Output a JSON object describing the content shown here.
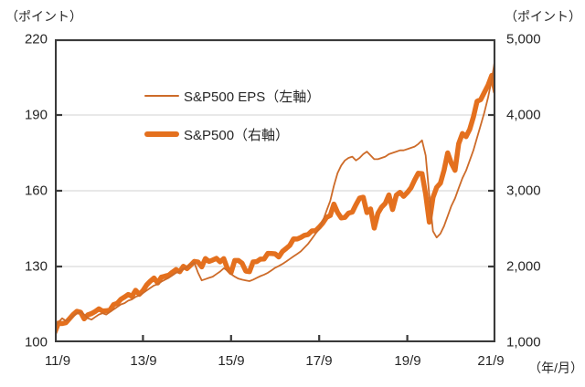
{
  "labels": {
    "left_unit": "（ポイント）",
    "right_unit": "（ポイント）",
    "x_unit": "（年/月）"
  },
  "legend": {
    "eps_label": "S&P500 EPS（左軸）",
    "price_label": "S&P500（右軸）"
  },
  "colors": {
    "eps_line": "#cd6b29",
    "price_line": "#e4701e",
    "axis": "#3a3a3a",
    "gridline": "#d9d9d9",
    "text": "#262626"
  },
  "chart_data": {
    "type": "line",
    "title": "",
    "frequency": "monthly",
    "x_start": "2011/9",
    "x_end": "2021/9",
    "x_tick_labels": [
      "11/9",
      "13/9",
      "15/9",
      "17/9",
      "19/9",
      "21/9"
    ],
    "x_tick_month_indices": [
      0,
      24,
      48,
      72,
      96,
      120
    ],
    "grid": "horizontal-only",
    "legend_position": "inside-top-left",
    "left_axis": {
      "unit": "（ポイント）",
      "min": 100,
      "max": 220,
      "tick_labels": [
        "220",
        "190",
        "160",
        "130",
        "100"
      ],
      "tick_values": [
        220,
        190,
        160,
        130,
        100
      ]
    },
    "right_axis": {
      "unit": "（ポイント）",
      "min": 1000,
      "max": 5000,
      "tick_labels": [
        "5,000",
        "4,000",
        "3,000",
        "2,000",
        "1,000"
      ],
      "tick_values": [
        5000,
        4000,
        3000,
        2000,
        1000
      ]
    },
    "series": [
      {
        "name": "S&P500 EPS（左軸）",
        "axis": "left",
        "color": "#cd6b29",
        "stroke_width": 1.8,
        "values": [
          106.0,
          108.0,
          109.5,
          108.5,
          109.0,
          110.5,
          111.5,
          112.0,
          111.0,
          109.5,
          109.0,
          110.0,
          111.0,
          111.5,
          111.0,
          112.0,
          113.0,
          114.0,
          115.0,
          115.5,
          116.5,
          117.0,
          118.0,
          118.5,
          119.5,
          120.5,
          121.5,
          122.5,
          123.0,
          124.0,
          124.8,
          125.5,
          126.5,
          127.5,
          128.0,
          129.0,
          129.8,
          130.8,
          131.5,
          127.5,
          124.5,
          125.0,
          125.5,
          126.0,
          127.0,
          128.0,
          129.3,
          128.5,
          127.0,
          126.0,
          125.2,
          124.8,
          124.5,
          124.2,
          124.8,
          125.5,
          126.2,
          126.8,
          127.5,
          128.5,
          129.5,
          130.2,
          131.0,
          132.0,
          133.0,
          134.0,
          135.0,
          136.0,
          137.5,
          139.0,
          141.0,
          143.0,
          145.0,
          148.0,
          152.0,
          156.0,
          162.0,
          167.0,
          170.0,
          172.0,
          173.0,
          173.5,
          172.0,
          173.0,
          174.5,
          175.5,
          174.0,
          172.5,
          172.5,
          173.0,
          173.5,
          174.5,
          175.0,
          175.5,
          176.0,
          176.0,
          176.5,
          177.0,
          177.5,
          178.5,
          180.0,
          174.0,
          158.0,
          144.0,
          141.5,
          143.0,
          146.0,
          150.0,
          154.0,
          157.0,
          161.0,
          165.0,
          168.0,
          172.0,
          176.0,
          181.0,
          186.0,
          191.0,
          197.0,
          204.0,
          213.0
        ]
      },
      {
        "name": "S&P500（右軸）",
        "axis": "right",
        "color": "#e4701e",
        "stroke_width": 5.5,
        "values": [
          1131,
          1253,
          1247,
          1258,
          1312,
          1366,
          1408,
          1398,
          1310,
          1362,
          1379,
          1407,
          1441,
          1412,
          1416,
          1426,
          1498,
          1515,
          1569,
          1598,
          1631,
          1606,
          1686,
          1633,
          1682,
          1757,
          1806,
          1848,
          1783,
          1859,
          1872,
          1884,
          1924,
          1960,
          1931,
          2003,
          1972,
          2018,
          2068,
          2059,
          1995,
          2105,
          2068,
          2086,
          2107,
          2063,
          2104,
          1972,
          1920,
          2079,
          2080,
          2044,
          1940,
          1932,
          2060,
          2065,
          2097,
          2099,
          2174,
          2171,
          2168,
          2126,
          2199,
          2239,
          2279,
          2364,
          2363,
          2384,
          2412,
          2423,
          2470,
          2472,
          2519,
          2575,
          2648,
          2674,
          2824,
          2714,
          2641,
          2648,
          2705,
          2718,
          2816,
          2902,
          2914,
          2712,
          2760,
          2507,
          2704,
          2784,
          2834,
          2946,
          2752,
          2942,
          2980,
          2926,
          2977,
          3038,
          3141,
          3231,
          3226,
          2954,
          2585,
          2912,
          3044,
          3100,
          3271,
          3500,
          3363,
          3270,
          3622,
          3756,
          3714,
          3811,
          3973,
          4181,
          4204,
          4298,
          4395,
          4523,
          4307
        ]
      }
    ]
  }
}
